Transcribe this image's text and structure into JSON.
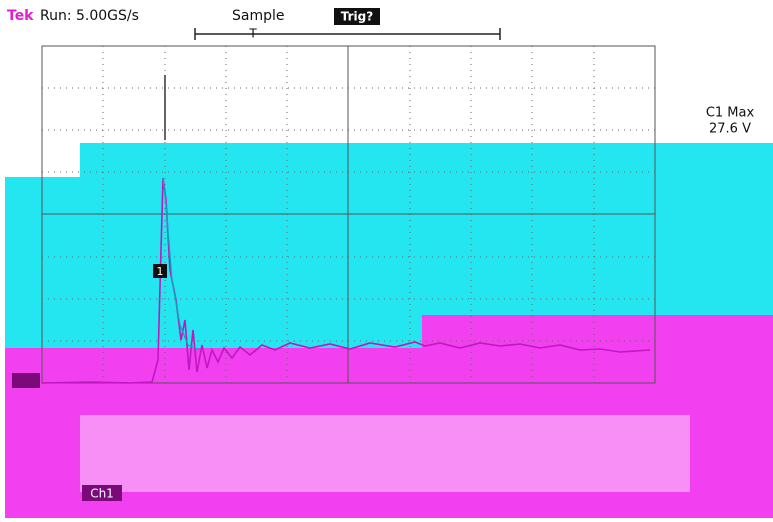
{
  "header": {
    "brand": "Tek",
    "run": "Run: 5.00GS/s",
    "mode": "Sample",
    "trigger": "Trig?"
  },
  "measurement": {
    "label": "C1 Max",
    "value": "27.6 V"
  },
  "markers": {
    "trigger_position": "T",
    "channel": "1"
  },
  "footer": {
    "channel": "Ch1"
  }
}
